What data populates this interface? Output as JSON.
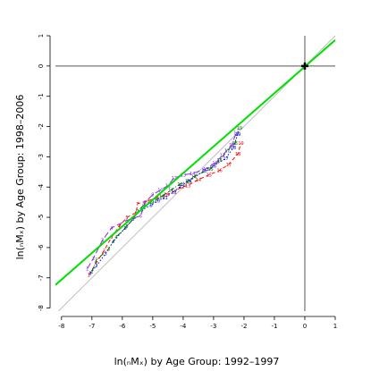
{
  "chart_data": {
    "type": "line",
    "xlabel": "ln(ₙMₓ) by Age Group: 1992–1997",
    "ylabel": "ln(ₙMₓ) by Age Group: 1998–2006",
    "xlim": [
      -8.2,
      1.0
    ],
    "ylim": [
      -8.1,
      1.0
    ],
    "x_ticks": [
      -8,
      -7,
      -6,
      -5,
      -4,
      -3,
      -2,
      -1,
      0,
      1
    ],
    "y_ticks": [
      -8,
      -7,
      -6,
      -5,
      -4,
      -3,
      -2,
      -1,
      0,
      1
    ],
    "grid": false,
    "reference_lines": {
      "identity": {
        "slope": 1,
        "intercept": 0,
        "color": "#c0c0c0"
      },
      "vertical_at_x": 0,
      "horizontal_at_y": 0,
      "axis_line_color": "#555555"
    },
    "fitted_line": {
      "slope": 0.88,
      "intercept": -0.02,
      "color": "#00e000"
    },
    "intersection_marker": {
      "x": 0,
      "y": 0,
      "shape": "cross"
    },
    "series": [
      {
        "color": "#ff0000",
        "dash": "dashed",
        "labels": [
          "1",
          "2",
          "3",
          "4",
          "5",
          "6",
          "7",
          "8",
          "9",
          "10",
          "11",
          "12",
          "13",
          "14",
          "15",
          "16",
          "17",
          "18",
          "19"
        ],
        "x": [
          -7.1,
          -6.6,
          -6.35,
          -6.1,
          -5.85,
          -5.55,
          -5.5,
          -5.15,
          -4.85,
          -4.55,
          -4.3,
          -4.05,
          -3.85,
          -3.5,
          -3.15,
          -2.8,
          -2.5,
          -2.2,
          -2.1
        ],
        "y": [
          -6.9,
          -6.1,
          -5.65,
          -5.3,
          -5.0,
          -4.85,
          -4.55,
          -4.45,
          -4.35,
          -4.25,
          -4.15,
          -4.0,
          -3.95,
          -3.75,
          -3.6,
          -3.45,
          -3.25,
          -2.9,
          -2.55
        ]
      },
      {
        "color": "#0000ff",
        "dash": "dotted",
        "labels": [
          "1",
          "2",
          "3",
          "4",
          "5",
          "6",
          "7",
          "8",
          "9",
          "10",
          "11",
          "12",
          "13",
          "14",
          "15",
          "16",
          "17",
          "18",
          "19"
        ],
        "x": [
          -7.05,
          -6.85,
          -6.55,
          -6.3,
          -5.9,
          -5.65,
          -5.55,
          -5.35,
          -5.05,
          -4.85,
          -4.6,
          -4.3,
          -4.05,
          -3.8,
          -3.3,
          -3.0,
          -2.6,
          -2.35,
          -2.2
        ],
        "y": [
          -6.85,
          -6.6,
          -6.2,
          -5.8,
          -5.35,
          -5.05,
          -4.9,
          -4.75,
          -4.6,
          -4.45,
          -4.35,
          -4.15,
          -3.95,
          -3.8,
          -3.45,
          -3.3,
          -3.05,
          -2.7,
          -2.25
        ]
      },
      {
        "color": "#006400",
        "dash": "dashdot",
        "labels": [
          "1",
          "2",
          "3",
          "4",
          "5",
          "6",
          "7",
          "8",
          "9",
          "10",
          "11",
          "12",
          "13",
          "14",
          "15",
          "16",
          "17",
          "18",
          "19"
        ],
        "x": [
          -7.0,
          -6.85,
          -6.45,
          -6.2,
          -5.85,
          -5.6,
          -5.5,
          -5.3,
          -5.0,
          -4.7,
          -4.4,
          -4.1,
          -3.85,
          -3.65,
          -3.1,
          -2.8,
          -2.55,
          -2.3,
          -2.15
        ],
        "y": [
          -6.8,
          -6.4,
          -6.05,
          -5.65,
          -5.3,
          -5.0,
          -4.8,
          -4.6,
          -4.5,
          -4.3,
          -4.1,
          -3.9,
          -3.8,
          -3.65,
          -3.4,
          -3.1,
          -2.8,
          -2.55,
          -2.05
        ]
      },
      {
        "color": "#8a2be2",
        "dash": "longdash",
        "labels": [
          "1",
          "2",
          "3",
          "4",
          "5",
          "6",
          "7",
          "8",
          "9",
          "10",
          "11",
          "12",
          "13",
          "14",
          "15",
          "16",
          "17",
          "18",
          "19"
        ],
        "x": [
          -7.15,
          -6.95,
          -6.65,
          -6.35,
          -5.85,
          -5.4,
          -5.35,
          -5.25,
          -5.0,
          -4.75,
          -4.5,
          -4.3,
          -4.0,
          -3.7,
          -3.25,
          -2.95,
          -2.7,
          -2.4,
          -2.25
        ],
        "y": [
          -6.7,
          -6.35,
          -5.75,
          -5.35,
          -5.1,
          -4.95,
          -4.8,
          -4.5,
          -4.25,
          -4.1,
          -3.95,
          -3.7,
          -3.6,
          -3.55,
          -3.4,
          -3.2,
          -2.95,
          -2.6,
          -2.2
        ]
      }
    ]
  }
}
